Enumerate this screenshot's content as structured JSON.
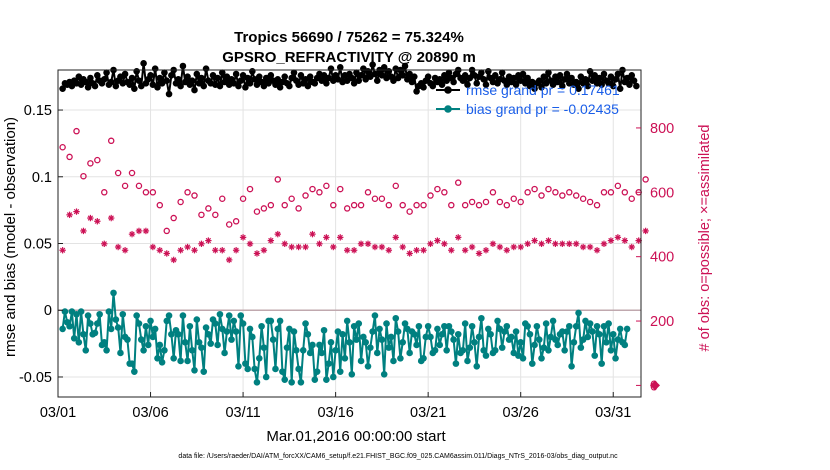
{
  "chart_data": {
    "type": "line",
    "title": "Tropics 56690 / 75262 = 75.324%",
    "subtitle": "GPSRO_REFRACTIVITY @ 20890 m",
    "xlabel": "Mar.01,2016 00:00:00 start",
    "ylabel": "rmse and bias (model - observation)",
    "y2label": "# of obs: o=possible; ×=assimilated",
    "footnote": "data file: /Users/raeder/DAI/ATM_forcXX/CAM6_setup/f.e21.FHIST_BGC.f09_025.CAM6assim.011/Diags_NTrS_2016-03/obs_diag_output.nc",
    "x_tick_labels": [
      "03/01",
      "03/06",
      "03/11",
      "03/16",
      "03/21",
      "03/26",
      "03/31"
    ],
    "x_tick_days": [
      1,
      6,
      11,
      16,
      21,
      26,
      31
    ],
    "xlim": [
      1,
      32.5
    ],
    "ylim": [
      -0.065,
      0.18
    ],
    "y_ticks": [
      -0.05,
      0,
      0.05,
      0.1,
      0.15
    ],
    "y_tick_labels": [
      "-0.05",
      "0",
      "0.05",
      "0.1",
      "0.15"
    ],
    "y2lim": [
      -36,
      980
    ],
    "y2_ticks": [
      0,
      200,
      400,
      600,
      800
    ],
    "y2_tick_labels": [
      "0",
      "200",
      "400",
      "600",
      "800"
    ],
    "legend": [
      "rmse grand pr = 0.17461",
      "bias grand pr = -0.02435"
    ],
    "series": [
      {
        "name": "rmse",
        "color": "#000000",
        "axis": "left",
        "values": [
          0.166,
          0.17,
          0.169,
          0.171,
          0.168,
          0.172,
          0.17,
          0.175,
          0.169,
          0.173,
          0.171,
          0.167,
          0.174,
          0.17,
          0.168,
          0.176,
          0.172,
          0.17,
          0.173,
          0.178,
          0.169,
          0.171,
          0.18,
          0.168,
          0.172,
          0.175,
          0.17,
          0.177,
          0.171,
          0.169,
          0.174,
          0.166,
          0.179,
          0.172,
          0.168,
          0.185,
          0.17,
          0.173,
          0.176,
          0.169,
          0.181,
          0.167,
          0.174,
          0.17,
          0.178,
          0.172,
          0.162,
          0.176,
          0.18,
          0.17,
          0.173,
          0.168,
          0.183,
          0.171,
          0.175,
          0.169,
          0.172,
          0.165,
          0.177,
          0.17,
          0.174,
          0.168,
          0.181,
          0.172,
          0.17,
          0.176,
          0.169,
          0.174,
          0.168,
          0.178,
          0.171,
          0.175,
          0.169,
          0.173,
          0.17,
          0.177,
          0.168,
          0.172,
          0.176,
          0.167,
          0.174,
          0.17,
          0.179,
          0.173,
          0.169,
          0.175,
          0.171,
          0.168,
          0.174,
          0.17,
          0.176,
          0.172,
          0.169,
          0.173,
          0.167,
          0.171,
          0.175,
          0.17,
          0.168,
          0.174,
          0.178,
          0.172,
          0.169,
          0.176,
          0.17,
          0.173,
          0.168,
          0.175,
          0.171,
          0.17,
          0.174,
          0.177,
          0.172,
          0.176,
          0.17,
          0.174,
          0.181,
          0.172,
          0.176,
          0.173,
          0.182,
          0.171,
          0.176,
          0.172,
          0.177,
          0.174,
          0.17,
          0.178,
          0.172,
          0.176,
          0.181,
          0.173,
          0.179,
          0.175,
          0.184,
          0.177,
          0.172,
          0.18,
          0.176,
          0.182,
          0.174,
          0.179,
          0.175,
          0.172,
          0.181,
          0.174,
          0.18,
          0.176,
          0.183,
          0.173,
          0.177,
          0.171,
          0.175,
          0.164,
          0.168,
          0.17,
          0.167,
          0.172,
          0.175,
          0.17,
          0.168,
          0.174,
          0.171,
          0.173,
          0.169,
          0.176,
          0.172,
          0.178,
          0.174,
          0.171,
          0.177,
          0.18,
          0.174,
          0.172,
          0.176,
          0.169,
          0.174,
          0.18,
          0.176,
          0.17,
          0.175,
          0.178,
          0.173,
          0.169,
          0.179,
          0.174,
          0.171,
          0.176,
          0.17,
          0.173,
          0.178,
          0.172,
          0.169,
          0.175,
          0.171,
          0.174,
          0.169,
          0.176,
          0.172,
          0.177,
          0.17,
          0.174,
          0.168,
          0.171,
          0.166,
          0.17,
          0.172,
          0.167,
          0.175,
          0.17,
          0.178,
          0.172,
          0.169,
          0.175,
          0.171,
          0.176,
          0.168,
          0.173,
          0.177,
          0.17,
          0.174,
          0.169,
          0.171,
          0.166,
          0.175,
          0.17,
          0.173,
          0.168,
          0.179,
          0.172,
          0.176,
          0.17,
          0.174,
          0.169,
          0.177,
          0.172,
          0.17,
          0.175,
          0.168,
          0.173,
          0.177,
          0.166,
          0.18,
          0.171,
          0.174,
          0.169,
          0.176,
          0.172,
          0.168
        ]
      },
      {
        "name": "bias",
        "color": "#008080",
        "axis": "left",
        "values": [
          -0.014,
          -0.001,
          -0.009,
          -0.012,
          -0.001,
          -0.021,
          -0.003,
          -0.024,
          -0.001,
          -0.018,
          -0.03,
          -0.004,
          -0.01,
          -0.018,
          -0.017,
          -0.01,
          -0.003,
          -0.026,
          -0.024,
          -0.03,
          -0.001,
          -0.014,
          0.013,
          -0.007,
          -0.013,
          -0.032,
          -0.003,
          -0.02,
          -0.022,
          -0.04,
          -0.04,
          -0.046,
          -0.004,
          -0.01,
          -0.022,
          -0.03,
          -0.012,
          -0.026,
          -0.008,
          -0.02,
          -0.014,
          -0.036,
          -0.026,
          -0.039,
          -0.03,
          -0.008,
          -0.004,
          -0.018,
          -0.036,
          -0.015,
          -0.018,
          -0.038,
          -0.004,
          -0.024,
          -0.038,
          -0.012,
          -0.03,
          -0.045,
          -0.007,
          -0.024,
          -0.028,
          -0.046,
          -0.013,
          -0.018,
          -0.025,
          -0.007,
          -0.01,
          -0.026,
          -0.003,
          -0.014,
          -0.032,
          -0.016,
          -0.004,
          -0.022,
          -0.008,
          -0.016,
          -0.042,
          -0.004,
          -0.01,
          -0.04,
          -0.044,
          -0.014,
          -0.02,
          -0.044,
          -0.054,
          -0.036,
          -0.012,
          -0.028,
          -0.05,
          -0.008,
          -0.008,
          -0.022,
          -0.044,
          -0.014,
          -0.008,
          -0.046,
          -0.052,
          -0.028,
          -0.014,
          -0.054,
          -0.016,
          -0.03,
          -0.044,
          -0.054,
          -0.03,
          -0.01,
          -0.018,
          -0.032,
          -0.026,
          -0.052,
          -0.046,
          -0.026,
          -0.032,
          -0.015,
          -0.052,
          -0.04,
          -0.024,
          -0.05,
          -0.03,
          -0.016,
          -0.046,
          -0.018,
          -0.036,
          -0.008,
          -0.024,
          -0.048,
          -0.012,
          -0.022,
          -0.01,
          -0.038,
          -0.02,
          -0.024,
          -0.042,
          -0.028,
          -0.016,
          -0.004,
          -0.032,
          -0.014,
          -0.022,
          -0.048,
          -0.01,
          -0.028,
          -0.02,
          -0.038,
          -0.006,
          -0.016,
          -0.036,
          -0.024,
          -0.01,
          -0.014,
          -0.032,
          -0.016,
          -0.018,
          -0.026,
          -0.012,
          -0.038,
          -0.036,
          -0.02,
          -0.012,
          -0.02,
          -0.032,
          -0.03,
          -0.014,
          -0.026,
          -0.018,
          -0.012,
          -0.03,
          -0.012,
          -0.016,
          -0.022,
          -0.04,
          -0.018,
          -0.032,
          -0.03,
          -0.01,
          -0.038,
          -0.028,
          -0.012,
          -0.024,
          -0.042,
          -0.02,
          -0.006,
          -0.03,
          -0.034,
          -0.014,
          -0.018,
          -0.032,
          -0.03,
          -0.008,
          -0.014,
          -0.028,
          -0.016,
          -0.012,
          -0.022,
          -0.02,
          -0.032,
          -0.016,
          -0.034,
          -0.024,
          -0.036,
          -0.01,
          -0.012,
          -0.018,
          -0.04,
          -0.026,
          -0.012,
          -0.022,
          -0.036,
          -0.028,
          -0.01,
          -0.03,
          -0.02,
          -0.008,
          -0.022,
          -0.026,
          -0.018,
          -0.016,
          -0.03,
          -0.016,
          -0.012,
          -0.042,
          -0.024,
          -0.012,
          -0.002,
          -0.028,
          -0.022,
          -0.008,
          -0.02,
          -0.01,
          -0.016,
          -0.034,
          -0.012,
          -0.018,
          -0.04,
          -0.012,
          -0.024,
          -0.01,
          -0.03,
          -0.018,
          -0.036,
          -0.022,
          -0.014,
          -0.024,
          -0.026,
          -0.014
        ]
      },
      {
        "name": "# possible obs (o)",
        "color": "#cc1155",
        "axis": "right",
        "values": [
          740,
          785,
          700,
          710,
          720,
          740,
          790,
          760,
          690,
          650,
          700,
          660,
          690,
          700,
          750,
          700,
          670,
          680,
          600,
          720,
          690,
          760,
          700,
          620,
          660,
          580,
          540,
          620,
          600,
          720,
          660,
          590,
          630,
          620,
          700,
          680,
          600,
          560,
          640,
          600,
          600,
          590,
          560,
          560,
          600,
          480,
          490,
          560,
          520,
          600,
          540,
          570,
          580,
          580,
          600,
          560,
          550,
          590,
          560,
          540,
          530,
          580,
          530,
          550,
          560,
          560,
          530,
          560,
          520,
          580,
          540,
          500,
          500,
          520,
          550,
          510,
          540,
          530,
          580,
          560,
          630,
          610,
          570,
          600,
          540,
          520,
          560,
          550,
          580,
          620,
          560,
          580,
          600,
          640,
          600,
          610,
          560,
          640,
          660,
          580,
          660,
          610,
          550,
          610,
          600,
          590,
          620,
          600,
          610,
          580,
          560,
          600,
          570,
          600,
          620,
          560,
          590,
          560,
          600,
          580,
          610,
          600,
          590,
          550,
          600,
          580,
          560,
          570,
          540,
          560,
          600,
          570,
          600,
          590,
          620,
          580,
          610,
          600,
          580,
          600,
          540,
          560,
          600,
          560,
          620,
          590,
          560,
          560,
          600,
          570,
          540,
          600,
          620,
          560,
          600,
          580,
          560,
          600,
          610,
          590,
          580,
          600,
          610,
          560,
          570,
          600,
          580,
          590,
          560,
          600,
          560,
          630,
          600,
          580,
          560,
          600,
          610,
          570,
          600,
          580,
          560,
          590,
          600,
          570,
          600,
          620,
          600,
          580,
          560,
          570,
          610,
          600,
          560,
          590,
          600,
          580,
          560,
          610,
          570,
          600,
          560,
          600,
          580,
          560,
          610,
          600,
          570,
          590,
          560,
          600,
          610,
          580,
          560,
          600,
          570,
          580,
          590,
          600,
          560,
          600,
          610,
          570,
          590,
          600,
          560,
          580,
          600,
          610,
          570,
          590,
          600,
          560,
          580,
          610,
          600,
          570,
          590,
          600,
          560,
          600,
          620,
          570,
          590,
          600,
          640,
          600,
          580,
          600,
          620,
          600,
          580,
          560,
          640,
          620
        ]
      },
      {
        "name": "# assimilated obs (×)",
        "color": "#cc1155",
        "axis": "right",
        "values": [
          420,
          440,
          470,
          530,
          540,
          520,
          540,
          590,
          540,
          480,
          500,
          460,
          520,
          480,
          490,
          510,
          530,
          500,
          440,
          500,
          490,
          520,
          530,
          470,
          430,
          380,
          420,
          420,
          480,
          430,
          470,
          500,
          440,
          480,
          460,
          520,
          480,
          400,
          460,
          430,
          480,
          470,
          420,
          440,
          460,
          410,
          350,
          400,
          390,
          450,
          430,
          420,
          470,
          450,
          430,
          440,
          410,
          420,
          470,
          430,
          440,
          400,
          420,
          450,
          440,
          450,
          420,
          470,
          410,
          420,
          440,
          400,
          390,
          430,
          440,
          420,
          450,
          440,
          460,
          430,
          470,
          440,
          430,
          450,
          410,
          440,
          470,
          420,
          440,
          430,
          450,
          420,
          430,
          470,
          420,
          420,
          440,
          470,
          480,
          430,
          470,
          440,
          430,
          470,
          430,
          430,
          450,
          440,
          470,
          430,
          420,
          440,
          410,
          440,
          460,
          430,
          440,
          430,
          440,
          420,
          460,
          430,
          450,
          420,
          430,
          440,
          420,
          430,
          410,
          440,
          450,
          430,
          440,
          460,
          470,
          430,
          460,
          440,
          430,
          450,
          410,
          420,
          440,
          430,
          460,
          450,
          420,
          430,
          440,
          430,
          410,
          440,
          460,
          420,
          440,
          430,
          420,
          440,
          450,
          440,
          430,
          440,
          450,
          420,
          430,
          440,
          420,
          450,
          420,
          440,
          420,
          460,
          440,
          430,
          420,
          440,
          450,
          430,
          440,
          420,
          410,
          440,
          450,
          420,
          440,
          460,
          440,
          430,
          420,
          430,
          450,
          440,
          420,
          440,
          450,
          430,
          420,
          450,
          430,
          440,
          420,
          440,
          430,
          420,
          450,
          440,
          430,
          440,
          420,
          440,
          450,
          430,
          420,
          440,
          430,
          430,
          440,
          450,
          420,
          440,
          450,
          430,
          440,
          450,
          420,
          430,
          440,
          450,
          430,
          440,
          450,
          420,
          430,
          450,
          440,
          430,
          440,
          450,
          420,
          440,
          460,
          430,
          440,
          450,
          480,
          450,
          430,
          450,
          470,
          450,
          440,
          420,
          480,
          470
        ]
      }
    ]
  }
}
